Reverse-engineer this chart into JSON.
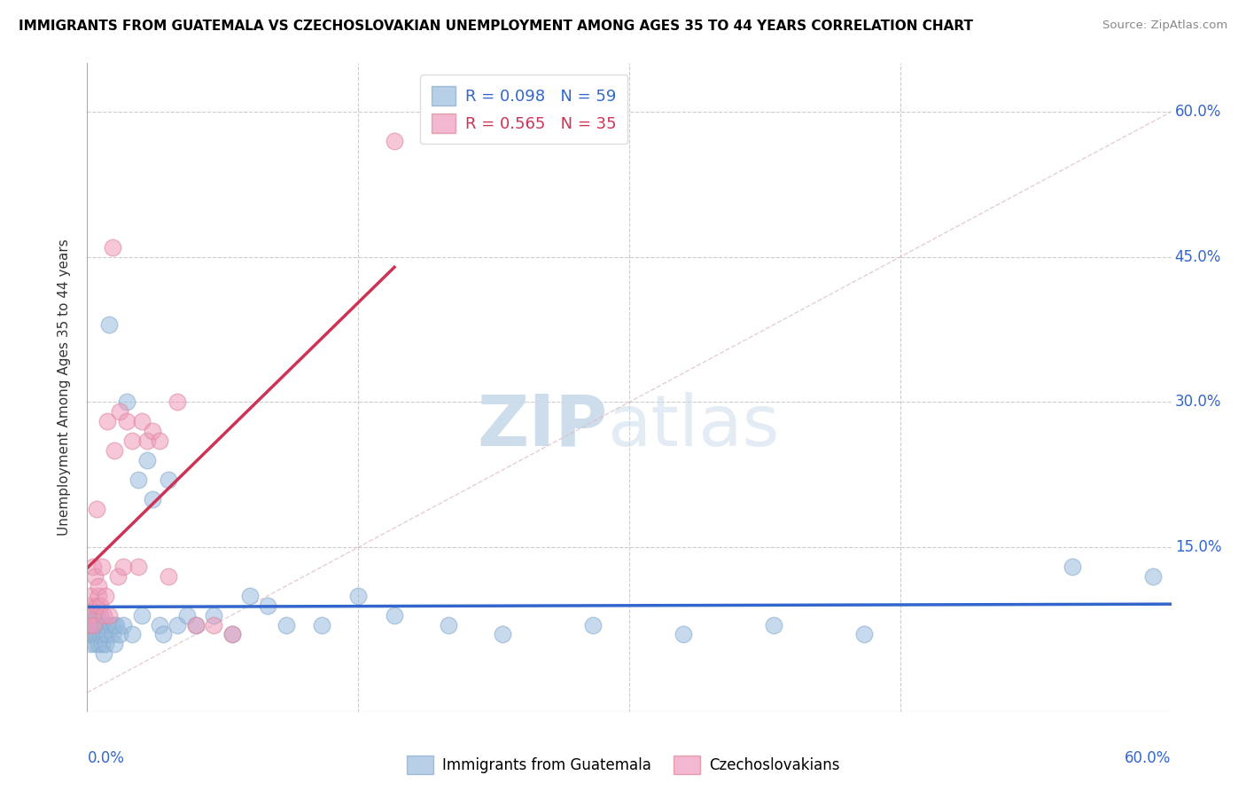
{
  "title": "IMMIGRANTS FROM GUATEMALA VS CZECHOSLOVAKIAN UNEMPLOYMENT AMONG AGES 35 TO 44 YEARS CORRELATION CHART",
  "source": "Source: ZipAtlas.com",
  "ylabel": "Unemployment Among Ages 35 to 44 years",
  "ytick_vals": [
    0.15,
    0.3,
    0.45,
    0.6
  ],
  "ytick_labels": [
    "15.0%",
    "30.0%",
    "45.0%",
    "60.0%"
  ],
  "xtick_vals": [
    0.0,
    0.15,
    0.3,
    0.45,
    0.6
  ],
  "xlim": [
    0.0,
    0.6
  ],
  "ylim": [
    -0.02,
    0.65
  ],
  "legend_R1": "R = 0.098",
  "legend_N1": "N = 59",
  "legend_R2": "R = 0.565",
  "legend_N2": "N = 35",
  "color_blue": "#99bbdd",
  "color_pink": "#ee99bb",
  "color_edge_blue": "#88aacc",
  "color_edge_pink": "#dd8899",
  "color_line_blue": "#3366cc",
  "color_line_pink": "#cc3355",
  "color_diag": "#ddbbbb",
  "watermark_zip_color": "#c8daea",
  "watermark_atlas_color": "#c8daea",
  "guatemala_x": [
    0.001,
    0.001,
    0.001,
    0.002,
    0.002,
    0.002,
    0.003,
    0.003,
    0.004,
    0.004,
    0.005,
    0.005,
    0.006,
    0.006,
    0.007,
    0.007,
    0.008,
    0.008,
    0.009,
    0.009,
    0.01,
    0.01,
    0.011,
    0.012,
    0.013,
    0.014,
    0.015,
    0.015,
    0.016,
    0.018,
    0.02,
    0.022,
    0.025,
    0.028,
    0.03,
    0.033,
    0.036,
    0.04,
    0.042,
    0.045,
    0.05,
    0.055,
    0.06,
    0.07,
    0.08,
    0.09,
    0.1,
    0.11,
    0.13,
    0.15,
    0.17,
    0.2,
    0.23,
    0.28,
    0.33,
    0.38,
    0.43,
    0.545,
    0.59
  ],
  "guatemala_y": [
    0.06,
    0.07,
    0.08,
    0.05,
    0.07,
    0.06,
    0.06,
    0.08,
    0.05,
    0.07,
    0.06,
    0.08,
    0.05,
    0.07,
    0.06,
    0.08,
    0.05,
    0.07,
    0.06,
    0.04,
    0.07,
    0.05,
    0.06,
    0.38,
    0.07,
    0.06,
    0.07,
    0.05,
    0.07,
    0.06,
    0.07,
    0.3,
    0.06,
    0.22,
    0.08,
    0.24,
    0.2,
    0.07,
    0.06,
    0.22,
    0.07,
    0.08,
    0.07,
    0.08,
    0.06,
    0.1,
    0.09,
    0.07,
    0.07,
    0.1,
    0.08,
    0.07,
    0.06,
    0.07,
    0.06,
    0.07,
    0.06,
    0.13,
    0.12
  ],
  "czech_x": [
    0.001,
    0.001,
    0.002,
    0.002,
    0.003,
    0.003,
    0.004,
    0.005,
    0.005,
    0.006,
    0.006,
    0.007,
    0.008,
    0.009,
    0.01,
    0.011,
    0.012,
    0.014,
    0.015,
    0.017,
    0.018,
    0.02,
    0.022,
    0.025,
    0.028,
    0.03,
    0.033,
    0.036,
    0.04,
    0.045,
    0.05,
    0.06,
    0.07,
    0.08,
    0.17
  ],
  "czech_y": [
    0.07,
    0.09,
    0.08,
    0.1,
    0.07,
    0.13,
    0.12,
    0.09,
    0.19,
    0.1,
    0.11,
    0.09,
    0.13,
    0.08,
    0.1,
    0.28,
    0.08,
    0.46,
    0.25,
    0.12,
    0.29,
    0.13,
    0.28,
    0.26,
    0.13,
    0.28,
    0.26,
    0.27,
    0.26,
    0.12,
    0.3,
    0.07,
    0.07,
    0.06,
    0.57
  ]
}
